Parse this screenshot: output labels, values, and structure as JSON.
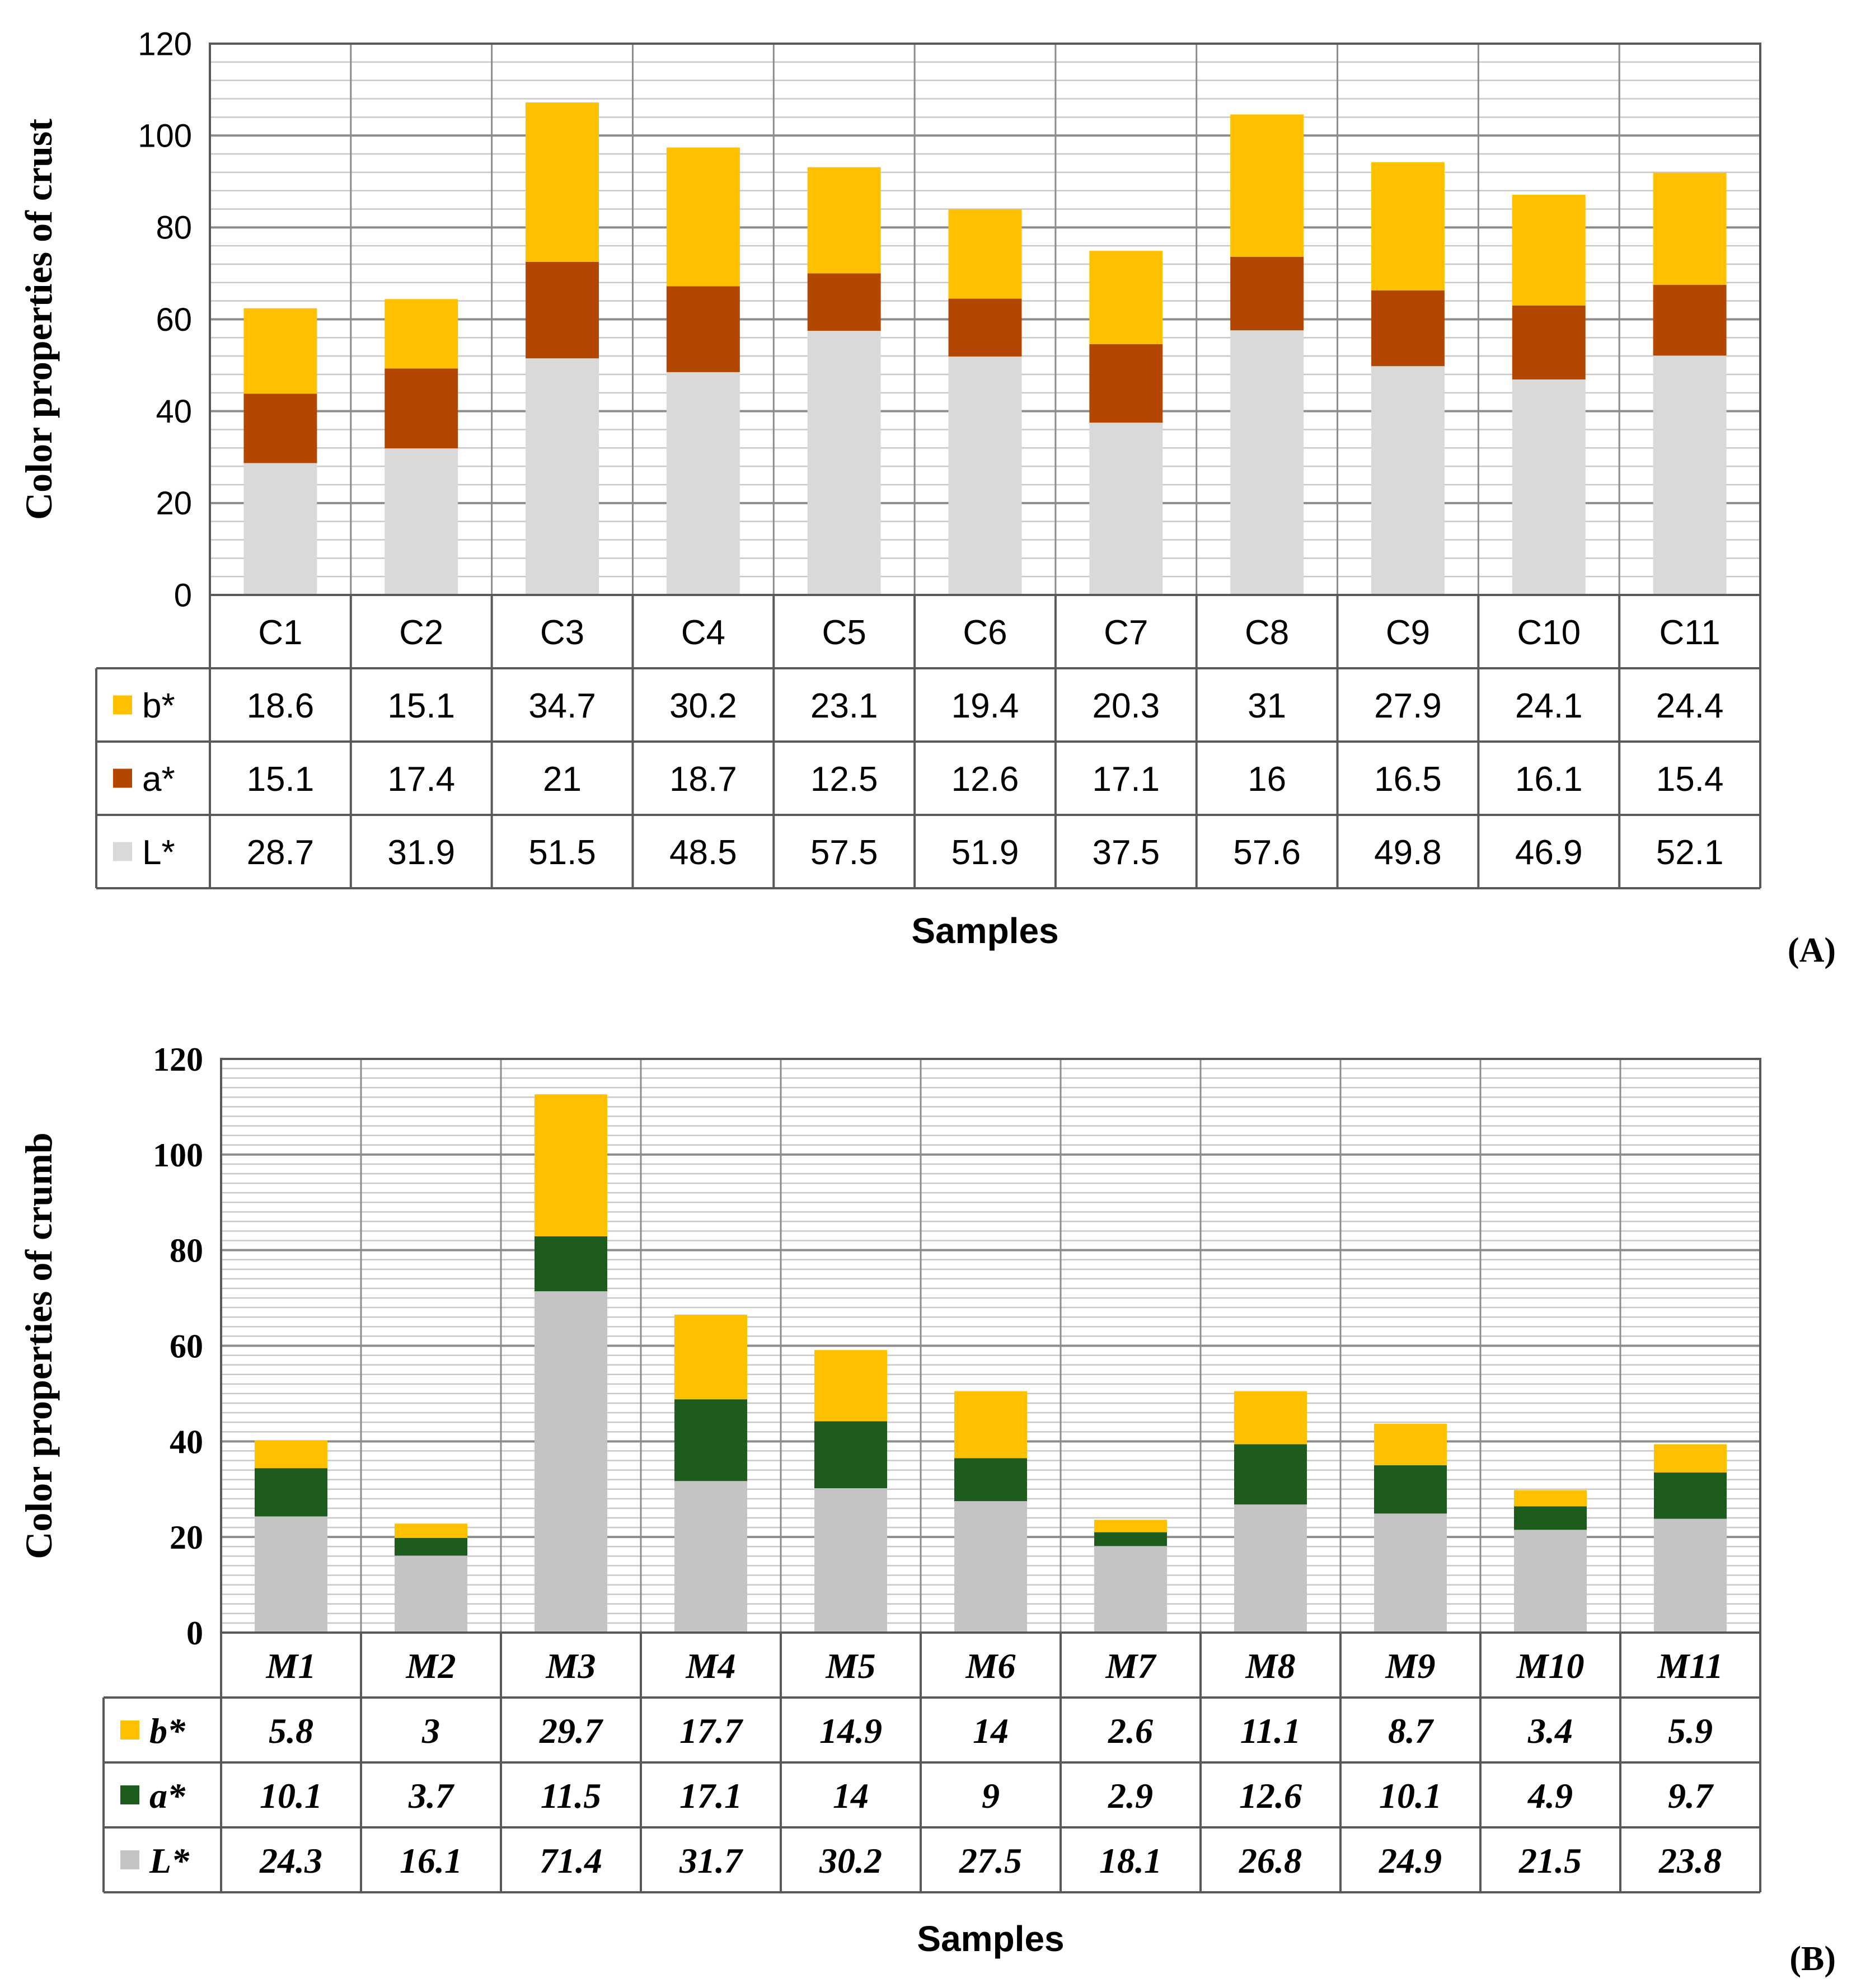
{
  "colors": {
    "b": "#FFC000",
    "a_crust": "#B34700",
    "a_crumb": "#1E5C1E",
    "L_crust": "#D9D9D9",
    "L_crumb": "#C4C4C4",
    "grid": "#A6A6A6",
    "axis": "#595959"
  },
  "chart_data": [
    {
      "type": "bar",
      "stacked": true,
      "panel_label": "(A)",
      "ylabel": "Color  properties of crust",
      "xlabel": "Samples",
      "ylim": [
        0,
        120
      ],
      "yticks": [
        "0",
        "20",
        "40",
        "60",
        "80",
        "100",
        "120"
      ],
      "grid": true,
      "legend": "data table",
      "categories": [
        "C1",
        "C2",
        "C3",
        "C4",
        "C5",
        "C6",
        "C7",
        "C8",
        "C9",
        "C10",
        "C11"
      ],
      "series": [
        {
          "name": "L*",
          "color_key": "L_crust",
          "values": [
            28.7,
            31.9,
            51.5,
            48.5,
            57.5,
            51.9,
            37.5,
            57.6,
            49.8,
            46.9,
            52.1
          ]
        },
        {
          "name": "a*",
          "color_key": "a_crust",
          "values": [
            15.1,
            17.4,
            21,
            18.7,
            12.5,
            12.6,
            17.1,
            16,
            16.5,
            16.1,
            15.4
          ]
        },
        {
          "name": "b*",
          "color_key": "b",
          "values": [
            18.6,
            15.1,
            34.7,
            30.2,
            23.1,
            19.4,
            20.3,
            31,
            27.9,
            24.1,
            24.4
          ]
        }
      ],
      "table_rows": [
        {
          "name": "b*",
          "color_key": "b",
          "values": [
            "18.6",
            "15.1",
            "34.7",
            "30.2",
            "23.1",
            "19.4",
            "20.3",
            "31",
            "27.9",
            "24.1",
            "24.4"
          ]
        },
        {
          "name": "a*",
          "color_key": "a_crust",
          "values": [
            "15.1",
            "17.4",
            "21",
            "18.7",
            "12.5",
            "12.6",
            "17.1",
            "16",
            "16.5",
            "16.1",
            "15.4"
          ]
        },
        {
          "name": "L*",
          "color_key": "L_crust",
          "values": [
            "28.7",
            "31.9",
            "51.5",
            "48.5",
            "57.5",
            "51.9",
            "37.5",
            "57.6",
            "49.8",
            "46.9",
            "52.1"
          ]
        }
      ]
    },
    {
      "type": "bar",
      "stacked": true,
      "panel_label": "(B)",
      "ylabel": "Color   properties of crumb",
      "xlabel": "Samples",
      "ylim": [
        0,
        120
      ],
      "yticks": [
        "0",
        "20",
        "40",
        "60",
        "80",
        "100",
        "120"
      ],
      "grid": true,
      "legend": "data table",
      "categories": [
        "M1",
        "M2",
        "M3",
        "M4",
        "M5",
        "M6",
        "M7",
        "M8",
        "M9",
        "M10",
        "M11"
      ],
      "series": [
        {
          "name": "L*",
          "color_key": "L_crumb",
          "values": [
            24.3,
            16.1,
            71.4,
            31.7,
            30.2,
            27.5,
            18.1,
            26.8,
            24.9,
            21.5,
            23.8
          ]
        },
        {
          "name": "a*",
          "color_key": "a_crumb",
          "values": [
            10.1,
            3.7,
            11.5,
            17.1,
            14,
            9,
            2.9,
            12.6,
            10.1,
            4.9,
            9.7
          ]
        },
        {
          "name": "b*",
          "color_key": "b",
          "values": [
            5.8,
            3,
            29.7,
            17.7,
            14.9,
            14,
            2.6,
            11.1,
            8.7,
            3.4,
            5.9
          ]
        }
      ],
      "table_rows": [
        {
          "name": "b*",
          "color_key": "b",
          "values": [
            "5.8",
            "3",
            "29.7",
            "17.7",
            "14.9",
            "14",
            "2.6",
            "11.1",
            "8.7",
            "3.4",
            "5.9"
          ]
        },
        {
          "name": "a*",
          "color_key": "a_crumb",
          "values": [
            "10.1",
            "3.7",
            "11.5",
            "17.1",
            "14",
            "9",
            "2.9",
            "12.6",
            "10.1",
            "4.9",
            "9.7"
          ]
        },
        {
          "name": "L*",
          "color_key": "L_crumb",
          "values": [
            "24.3",
            "16.1",
            "71.4",
            "31.7",
            "30.2",
            "27.5",
            "18.1",
            "26.8",
            "24.9",
            "21.5",
            "23.8"
          ]
        }
      ]
    }
  ]
}
